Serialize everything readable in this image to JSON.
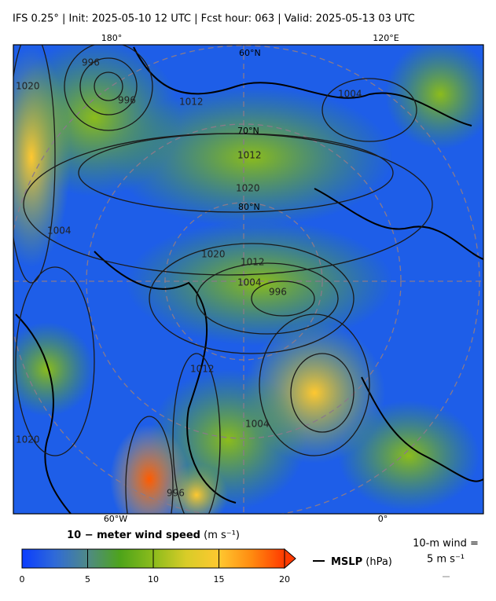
{
  "header": {
    "title": "IFS 0.25°  |  Init: 2025-05-10 12 UTC  |  Fcst hour: 063  |  Valid: 2025-05-13 03 UTC"
  },
  "map": {
    "lon_labels": [
      "180°",
      "120°E",
      "60°W",
      "0°"
    ],
    "lat_labels": [
      "60°N",
      "70°N",
      "80°N"
    ],
    "isobar_labels": [
      "996",
      "996",
      "1012",
      "1020",
      "1004",
      "1012",
      "1020",
      "1020",
      "1012",
      "1004",
      "996",
      "1004",
      "1012",
      "1020",
      "1004",
      "996"
    ]
  },
  "colorbar": {
    "title": "10 − meter wind speed",
    "unit": "(m s⁻¹)",
    "lim": [
      0,
      20
    ],
    "ticks": [
      0,
      5,
      10,
      15,
      20
    ],
    "colors": [
      "#0a3cff",
      "#2f6ad8",
      "#4f8a86",
      "#4ea41a",
      "#8cbc1c",
      "#d8cc28",
      "#ffc830",
      "#ff8a10",
      "#ff3a00"
    ]
  },
  "legend": {
    "mslp": "MSLP",
    "mslp_unit": "(hPa)",
    "wind_title": "10-m wind =",
    "wind_value": "5 m s⁻¹"
  }
}
